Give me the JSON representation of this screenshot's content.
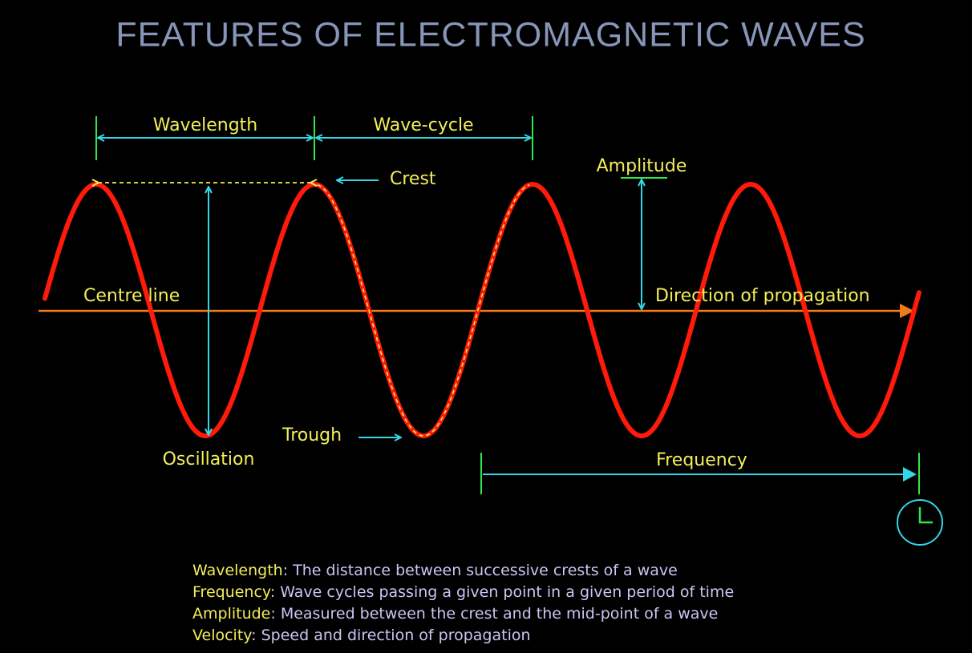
{
  "title": "FEATURES OF ELECTROMAGNETIC WAVES",
  "labels": {
    "wavelength": "Wavelength",
    "wave_cycle": "Wave-cycle",
    "crest": "Crest",
    "amplitude": "Amplitude",
    "centre_line": "Centre line",
    "direction": "Direction of propagation",
    "oscillation": "Oscillation",
    "trough": "Trough",
    "frequency": "Frequency"
  },
  "definitions": [
    {
      "term": "Wavelength",
      "description": ": The distance between successive crests of a wave"
    },
    {
      "term": "Frequency",
      "description": ": Wave cycles passing a given point in a given period of time"
    },
    {
      "term": "Amplitude",
      "description": ": Measured between the crest and the mid-point of a wave"
    },
    {
      "term": "Velocity",
      "description": ": Speed and direction of propagation"
    }
  ]
}
